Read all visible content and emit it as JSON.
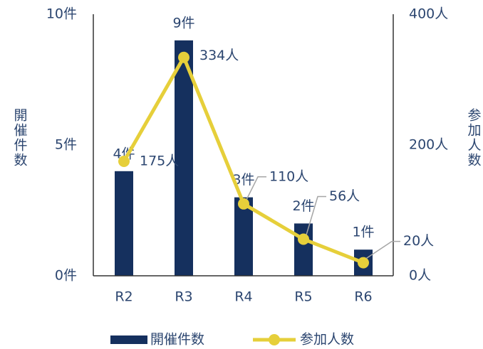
{
  "chart_data": {
    "type": "bar_line",
    "categories": [
      "R2",
      "R3",
      "R4",
      "R5",
      "R6"
    ],
    "series": [
      {
        "name": "開催件数",
        "type": "bar",
        "color": "#15305e",
        "values": [
          4,
          9,
          3,
          2,
          1
        ],
        "value_labels": [
          "4件",
          "9件",
          "3件",
          "2件",
          "1件"
        ]
      },
      {
        "name": "参加人数",
        "type": "line",
        "axis": "y2",
        "color": "#e6cf3a",
        "values": [
          175,
          334,
          110,
          56,
          20
        ],
        "value_labels": [
          "175人",
          "334人",
          "110人",
          "56人",
          "20人"
        ]
      }
    ],
    "ylabel": "開催件数",
    "y2label": "参加人数",
    "ylim": [
      0,
      10
    ],
    "yticks": [
      {
        "value": 0,
        "label": "0件"
      },
      {
        "value": 5,
        "label": "5件"
      },
      {
        "value": 10,
        "label": "10件"
      }
    ],
    "y2lim": [
      0,
      400
    ],
    "y2ticks": [
      {
        "value": 0,
        "label": "0人"
      },
      {
        "value": 200,
        "label": "200人"
      },
      {
        "value": 400,
        "label": "400人"
      }
    ],
    "legend": "bottom"
  }
}
